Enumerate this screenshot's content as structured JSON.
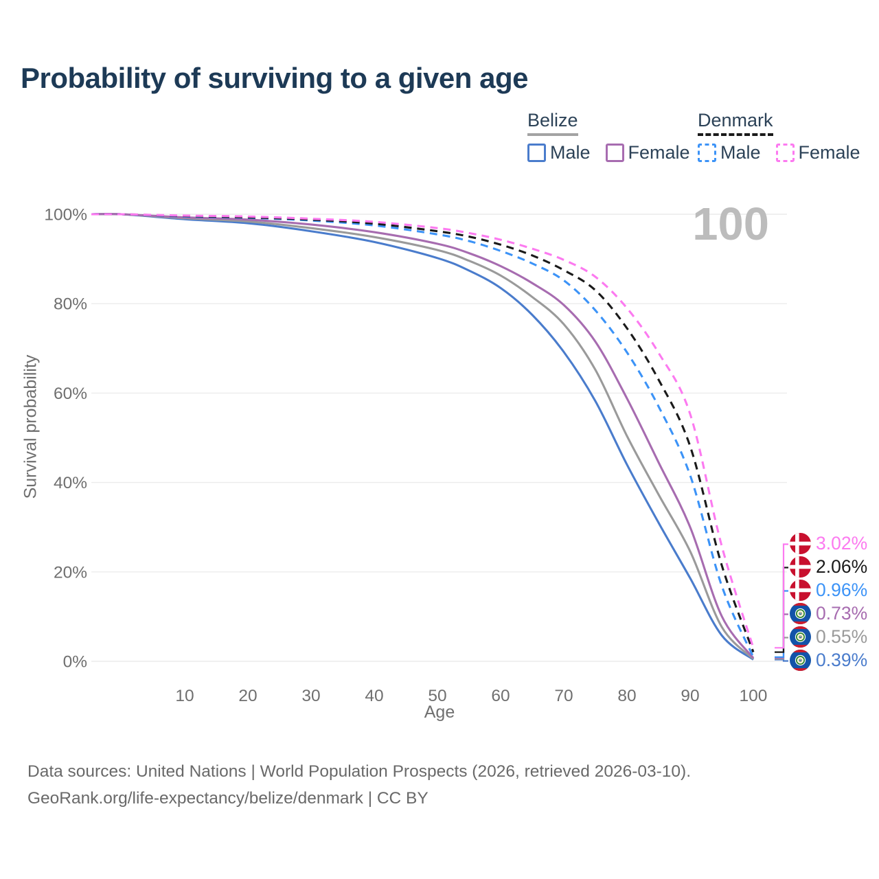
{
  "title": "Probability of surviving to a given age",
  "legend": {
    "groups": [
      {
        "country": "Belize",
        "line_style": "solid",
        "items": [
          {
            "label": "Male"
          },
          {
            "label": "Female"
          }
        ]
      },
      {
        "country": "Denmark",
        "line_style": "dashed",
        "items": [
          {
            "label": "Male"
          },
          {
            "label": "Female"
          }
        ]
      }
    ]
  },
  "axes": {
    "x_title": "Age",
    "y_title": "Survival probability",
    "x_ticks": [
      10,
      20,
      30,
      40,
      50,
      60,
      70,
      80,
      90,
      100
    ],
    "y_ticks": [
      "100%",
      "80%",
      "60%",
      "40%",
      "20%",
      "0%"
    ]
  },
  "watermark": "100",
  "footer": {
    "line1": "Data sources: United Nations | World Population Prospects (2026, retrieved 2026-03-10).",
    "line2": "GeoRank.org/life-expectancy/belize/denmark | CC BY"
  },
  "chart_data": {
    "type": "line",
    "title": "Probability of surviving to a given age",
    "xlabel": "Age",
    "ylabel": "Survival probability",
    "xlim": [
      0,
      100
    ],
    "ylim": [
      0,
      100
    ],
    "grid": true,
    "x": [
      0,
      10,
      20,
      30,
      40,
      50,
      55,
      60,
      65,
      70,
      75,
      80,
      85,
      90,
      95,
      100
    ],
    "series": [
      {
        "id": "belize-male",
        "country": "Belize",
        "sex": "Male",
        "color": "#4a7ccc",
        "dash": false,
        "flag": "belize",
        "end_label": "0.39%",
        "values": [
          100,
          98.9,
          98.0,
          96.2,
          93.8,
          90.2,
          87.4,
          83.5,
          77.5,
          69.2,
          58.2,
          44.0,
          31.0,
          18.6,
          5.8,
          0.39
        ]
      },
      {
        "id": "belize-total",
        "country": "Belize",
        "sex": "Both sexes",
        "color": "#9a9a9a",
        "dash": false,
        "flag": "belize",
        "end_label": "0.55%",
        "values": [
          100,
          99.1,
          98.4,
          96.9,
          94.9,
          92.0,
          89.6,
          86.3,
          81.5,
          75.4,
          65.2,
          50.4,
          37.3,
          24.6,
          7.7,
          0.55
        ]
      },
      {
        "id": "belize-female",
        "country": "Belize",
        "sex": "Female",
        "color": "#a76cb0",
        "dash": false,
        "flag": "belize",
        "end_label": "0.73%",
        "values": [
          100,
          99.3,
          98.8,
          97.7,
          96.0,
          93.4,
          91.3,
          88.4,
          84.6,
          79.7,
          71.5,
          58.8,
          44.5,
          30.0,
          10.1,
          0.73
        ]
      },
      {
        "id": "denmark-male",
        "country": "Denmark",
        "sex": "Male",
        "color": "#3c93f7",
        "dash": true,
        "flag": "denmark",
        "end_label": "0.96%",
        "values": [
          100,
          99.5,
          99.2,
          98.6,
          97.5,
          95.5,
          94.0,
          91.8,
          89.0,
          85.2,
          78.5,
          69.1,
          57.0,
          41.6,
          16.9,
          0.96
        ]
      },
      {
        "id": "denmark-total",
        "country": "Denmark",
        "sex": "Both sexes",
        "color": "#1a1a1a",
        "dash": true,
        "flag": "denmark",
        "end_label": "2.06%",
        "values": [
          100,
          99.6,
          99.3,
          98.8,
          97.9,
          96.2,
          95.0,
          93.2,
          90.8,
          87.5,
          83.0,
          74.5,
          63.0,
          48.1,
          21.5,
          2.06
        ]
      },
      {
        "id": "denmark-female",
        "country": "Denmark",
        "sex": "Female",
        "color": "#fc7af0",
        "dash": true,
        "flag": "denmark",
        "end_label": "3.02%",
        "values": [
          100,
          99.7,
          99.5,
          99.0,
          98.3,
          96.9,
          95.8,
          94.3,
          92.3,
          89.8,
          86.0,
          79.0,
          69.0,
          55.3,
          25.8,
          3.02
        ]
      }
    ]
  }
}
